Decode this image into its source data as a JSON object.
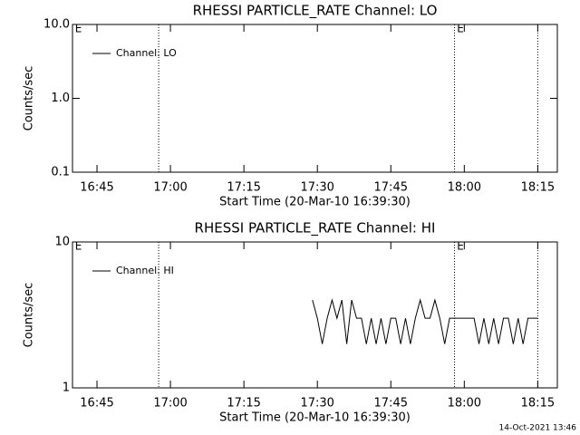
{
  "chart_data": [
    {
      "type": "line",
      "title": "RHESSI PARTICLE_RATE Channel: LO",
      "xlabel": "Start Time (20-Mar-10 16:39:30)",
      "ylabel": "Counts/sec",
      "xlim": [
        1000,
        1099
      ],
      "ylim": [
        0.1,
        10
      ],
      "log_y": true,
      "xticks": [
        {
          "value": 1005,
          "label": "16:45"
        },
        {
          "value": 1020,
          "label": "17:00"
        },
        {
          "value": 1035,
          "label": "17:15"
        },
        {
          "value": 1050,
          "label": "17:30"
        },
        {
          "value": 1065,
          "label": "17:45"
        },
        {
          "value": 1080,
          "label": "18:00"
        },
        {
          "value": 1095,
          "label": "18:15"
        }
      ],
      "yticks": [
        0.1,
        {
          "value": 1,
          "label": "1.0"
        },
        {
          "value": 10,
          "label": "10.0"
        }
      ],
      "vlines": [
        1017.6,
        1078,
        1095
      ],
      "annotations": [
        {
          "text": "E",
          "x": 1000.5
        },
        {
          "text": "E",
          "x": 1078.5
        }
      ],
      "legend": "upper left",
      "series": [
        {
          "name": "Channel: LO",
          "color": "#000000",
          "x": [],
          "values": []
        }
      ]
    },
    {
      "type": "line",
      "title": "RHESSI PARTICLE_RATE Channel: HI",
      "xlabel": "Start Time (20-Mar-10 16:39:30)",
      "ylabel": "Counts/sec",
      "xlim": [
        1000,
        1099
      ],
      "ylim": [
        1,
        10
      ],
      "log_y": true,
      "xticks": [
        {
          "value": 1005,
          "label": "16:45"
        },
        {
          "value": 1020,
          "label": "17:00"
        },
        {
          "value": 1035,
          "label": "17:15"
        },
        {
          "value": 1050,
          "label": "17:30"
        },
        {
          "value": 1065,
          "label": "17:45"
        },
        {
          "value": 1080,
          "label": "18:00"
        },
        {
          "value": 1095,
          "label": "18:15"
        }
      ],
      "yticks": [
        1,
        10
      ],
      "vlines": [
        1017.6,
        1078,
        1095
      ],
      "annotations": [
        {
          "text": "E",
          "x": 1000.5
        },
        {
          "text": "E",
          "x": 1078.5
        }
      ],
      "legend": "upper left",
      "series": [
        {
          "name": "Channel: HI",
          "color": "#000000",
          "x": [
            1049,
            1050,
            1051,
            1052,
            1053,
            1054,
            1055,
            1056,
            1057,
            1058,
            1059,
            1060,
            1061,
            1062,
            1063,
            1064,
            1065,
            1066,
            1067,
            1068,
            1069,
            1070,
            1071,
            1072,
            1073,
            1074,
            1075,
            1076,
            1077,
            1078,
            1079,
            1080,
            1081,
            1082,
            1083,
            1084,
            1085,
            1086,
            1087,
            1088,
            1089,
            1090,
            1091,
            1092,
            1093,
            1094,
            1095
          ],
          "values": [
            4,
            3,
            2,
            3,
            4,
            3,
            4,
            2,
            4,
            3,
            3,
            2,
            3,
            2,
            3,
            2,
            3,
            3,
            2,
            3,
            2,
            3,
            4,
            3,
            3,
            4,
            3,
            2,
            3,
            3,
            3,
            3,
            3,
            3,
            2,
            3,
            2,
            3,
            2,
            3,
            3,
            2,
            3,
            2,
            3,
            3,
            3
          ]
        }
      ]
    }
  ],
  "footer": "14-Oct-2021 13:46"
}
